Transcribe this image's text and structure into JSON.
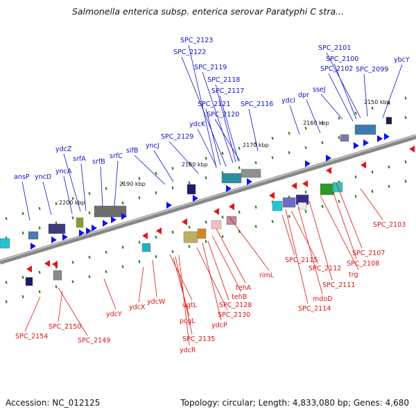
{
  "title": "Salmonella enterica subsp. enterica serovar Paratyphi C stra...",
  "footer": {
    "accession": "Accession: NC_012125",
    "stats": "Topology: circular; Length: 4,833,080 bp; Genes: 4,680"
  },
  "colors": {
    "forward_gene_label": "#1010cc",
    "reverse_gene_label": "#dd1111",
    "backbone": "#888888",
    "tick": "#228822"
  },
  "kbp_labels": [
    "2150 kbp",
    "2160 kbp",
    "2170 kbp",
    "2180 kbp",
    "2190 kbp",
    "2200 kbp"
  ],
  "forward_labels": [
    "ansP",
    "yncD",
    "yncA",
    "ydcZ",
    "srfA",
    "srfB",
    "srfC",
    "sifB",
    "yncJ",
    "SPC_2129",
    "ydcK",
    "SPC_2121",
    "SPC_2120",
    "SPC_2116",
    "SPC_2117",
    "SPC_2118",
    "SPC_2119",
    "SPC_2122",
    "SPC_2123",
    "ydcI",
    "dpr",
    "sseJ",
    "SPC_2101",
    "SPC_2100",
    "SPC_2102",
    "SPC_2099",
    "ybcY"
  ],
  "reverse_labels": [
    "SPC_2154",
    "SPC_2150",
    "SPC_2149",
    "ydcY",
    "ydcX",
    "ydcW",
    "ugtL",
    "pcgL",
    "SPC_2135",
    "ydcR",
    "SPC_2130",
    "ydcP",
    "SPC_2128",
    "tehB",
    "tehA",
    "rimL",
    "SPC_2115",
    "SPC_2112",
    "mdoD",
    "SPC_2114",
    "SPC_2111",
    "trg",
    "SPC_2108",
    "SPC_2107",
    "SPC_2103"
  ]
}
